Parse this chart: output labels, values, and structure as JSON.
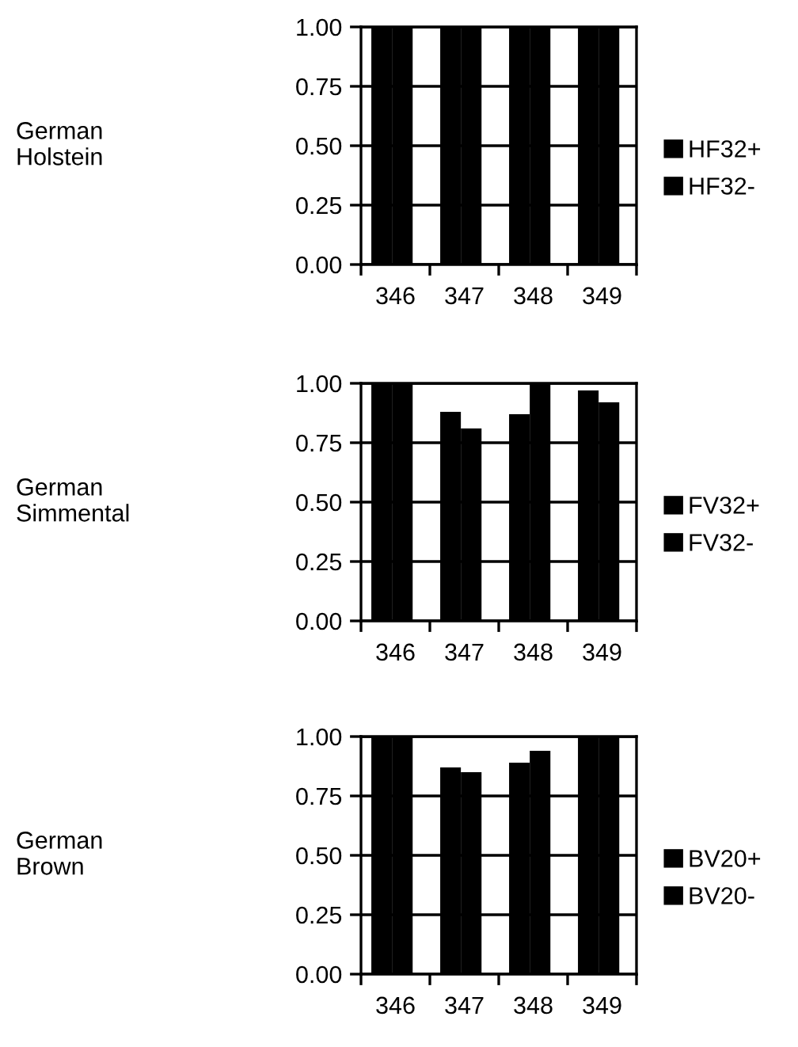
{
  "chart_data": [
    {
      "type": "bar",
      "ylabel": "German\nHolstein",
      "categories": [
        "346",
        "347",
        "348",
        "349"
      ],
      "series": [
        {
          "name": "HF32+",
          "color": "#000000",
          "values": [
            1.0,
            1.0,
            1.0,
            1.0
          ]
        },
        {
          "name": "HF32-",
          "color": "#000000",
          "values": [
            1.0,
            1.0,
            1.0,
            1.0
          ]
        }
      ],
      "ylim": [
        0,
        1
      ],
      "yticks": [
        {
          "value": 0,
          "label": "0.00"
        },
        {
          "value": 0.25,
          "label": "0.25"
        },
        {
          "value": 0.5,
          "label": "0.50"
        },
        {
          "value": 0.75,
          "label": "0.75"
        },
        {
          "value": 1,
          "label": "1.00"
        }
      ],
      "grid": "y",
      "legend": "right"
    },
    {
      "type": "bar",
      "ylabel": "German\nSimmental",
      "categories": [
        "346",
        "347",
        "348",
        "349"
      ],
      "series": [
        {
          "name": "FV32+",
          "color": "#000000",
          "values": [
            1.0,
            0.88,
            0.87,
            0.97
          ]
        },
        {
          "name": "FV32-",
          "color": "#000000",
          "values": [
            1.0,
            0.81,
            1.0,
            0.92
          ]
        }
      ],
      "ylim": [
        0,
        1
      ],
      "yticks": [
        {
          "value": 0,
          "label": "0.00"
        },
        {
          "value": 0.25,
          "label": "0.25"
        },
        {
          "value": 0.5,
          "label": "0.50"
        },
        {
          "value": 0.75,
          "label": "0.75"
        },
        {
          "value": 1,
          "label": "1.00"
        }
      ],
      "grid": "y",
      "legend": "right"
    },
    {
      "type": "bar",
      "ylabel": "German\nBrown",
      "categories": [
        "346",
        "347",
        "348",
        "349"
      ],
      "series": [
        {
          "name": "BV20+",
          "color": "#000000",
          "values": [
            1.0,
            0.87,
            0.89,
            1.0
          ]
        },
        {
          "name": "BV20-",
          "color": "#000000",
          "values": [
            1.0,
            0.85,
            0.94,
            1.0
          ]
        }
      ],
      "ylim": [
        0,
        1
      ],
      "yticks": [
        {
          "value": 0,
          "label": "0.00"
        },
        {
          "value": 0.25,
          "label": "0.25"
        },
        {
          "value": 0.5,
          "label": "0.50"
        },
        {
          "value": 0.75,
          "label": "0.75"
        },
        {
          "value": 1,
          "label": "1.00"
        }
      ],
      "grid": "y",
      "legend": "right"
    }
  ]
}
